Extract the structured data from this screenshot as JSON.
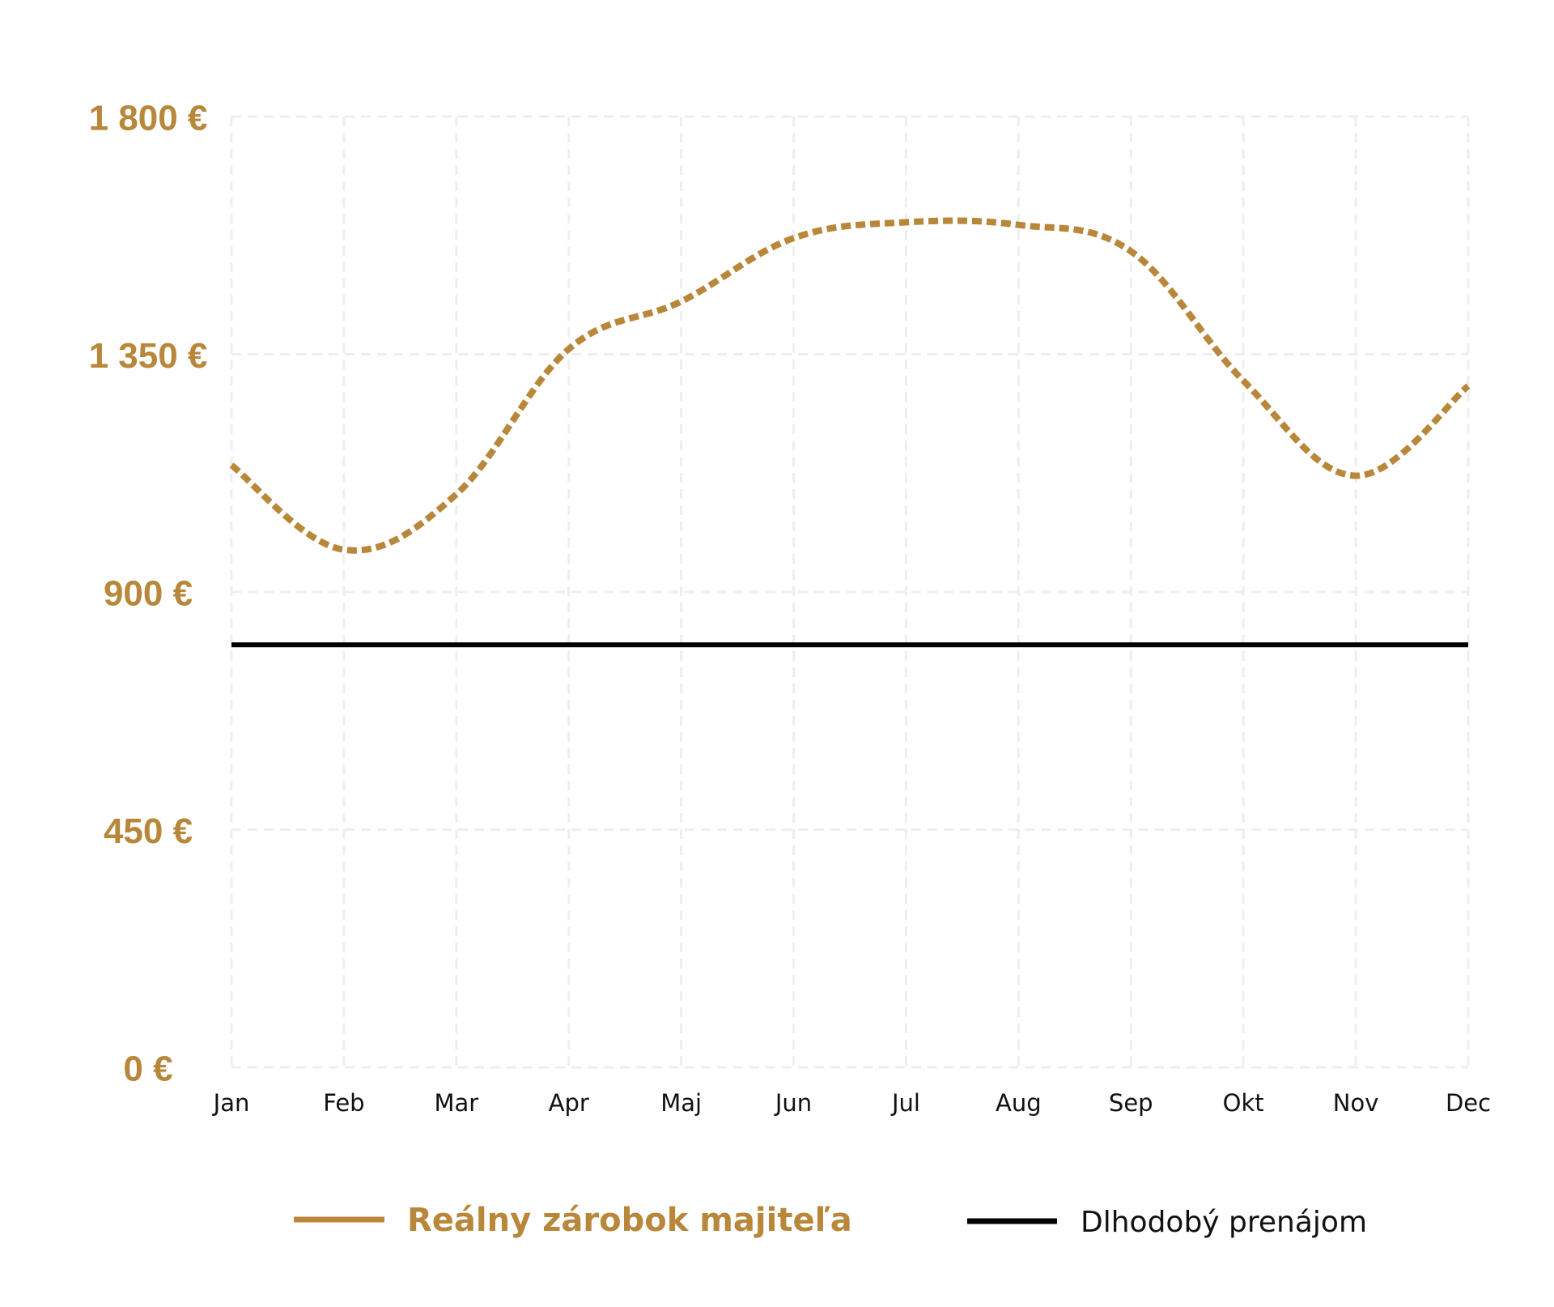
{
  "chart_data": {
    "type": "line",
    "title": "",
    "xlabel": "",
    "ylabel": "",
    "categories": [
      "Jan",
      "Feb",
      "Mar",
      "Apr",
      "Maj",
      "Jun",
      "Jul",
      "Aug",
      "Sep",
      "Okt",
      "Nov",
      "Dec"
    ],
    "y_ticks": [
      {
        "value": 1800,
        "label": "1 800 €"
      },
      {
        "value": 1350,
        "label": "1 350 €"
      },
      {
        "value": 900,
        "label": "900 €"
      },
      {
        "value": 450,
        "label": "450 €"
      },
      {
        "value": 0,
        "label": "0 €"
      }
    ],
    "ylim": [
      0,
      1800
    ],
    "grid": true,
    "series": [
      {
        "name": "Reálny zárobok majiteľa",
        "style": "dotted",
        "color": "#B8873A",
        "values": [
          1140,
          980,
          1085,
          1360,
          1450,
          1570,
          1600,
          1595,
          1545,
          1300,
          1120,
          1290
        ]
      },
      {
        "name": "Dlhodobý prenájom",
        "style": "solid",
        "color": "#000000",
        "values": [
          800,
          800,
          800,
          800,
          800,
          800,
          800,
          800,
          800,
          800,
          800,
          800
        ]
      }
    ],
    "legend": {
      "placement": "bottom",
      "items": [
        {
          "label": "Reálny zárobok majiteľa",
          "color": "#B8873A"
        },
        {
          "label": "Dlhodobý prenájom",
          "color": "#000000"
        }
      ]
    },
    "colors": {
      "accent": "#B8873A",
      "grid": "#EEEEEE",
      "text": "#111111"
    }
  }
}
